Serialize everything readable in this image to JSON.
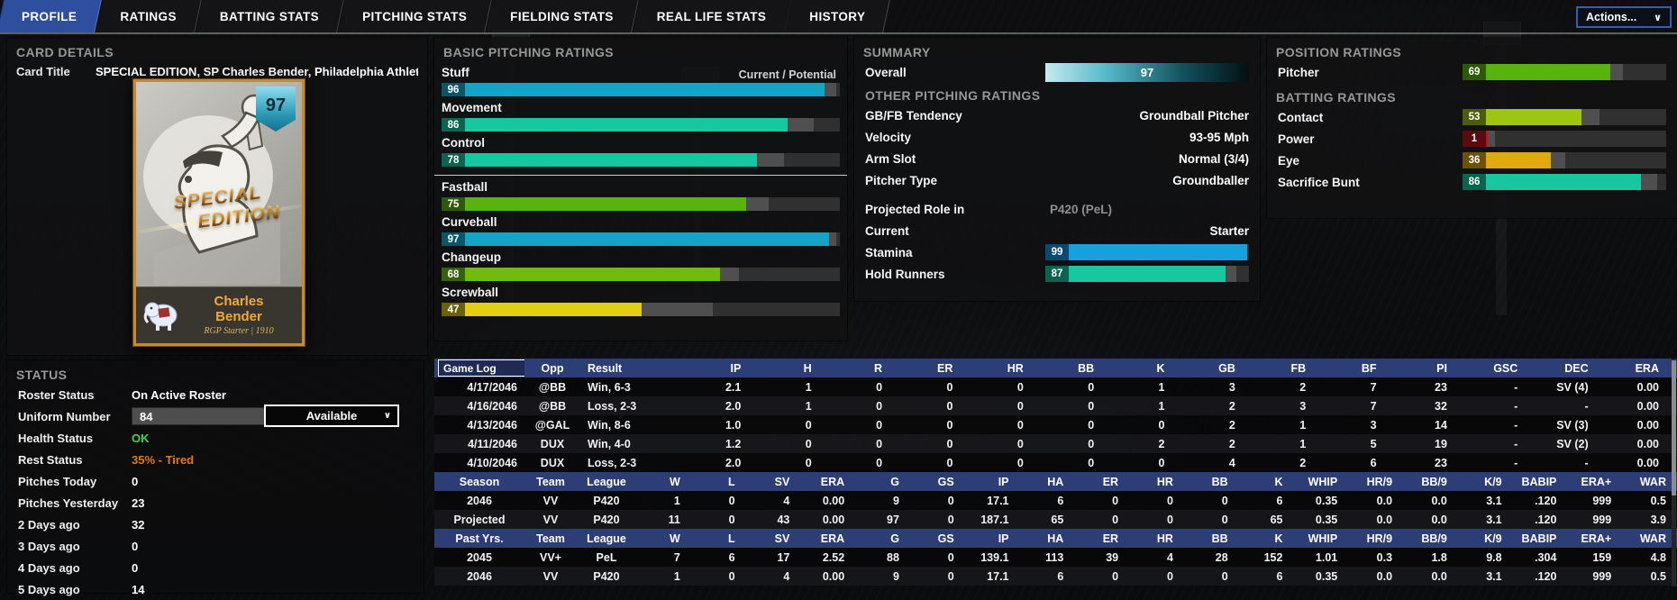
{
  "tabs": [
    {
      "label": "PROFILE",
      "active": true
    },
    {
      "label": "RATINGS",
      "active": false
    },
    {
      "label": "BATTING STATS",
      "active": false
    },
    {
      "label": "PITCHING STATS",
      "active": false
    },
    {
      "label": "FIELDING STATS",
      "active": false
    },
    {
      "label": "REAL LIFE STATS",
      "active": false
    },
    {
      "label": "HISTORY",
      "active": false
    }
  ],
  "actions_button": {
    "label": "Actions...",
    "chevron": "∨"
  },
  "card_details": {
    "heading": "CARD DETAILS",
    "title_label": "Card Title",
    "title_value": "SPECIAL EDITION, SP Charles Bender, Philadelphia Athleti",
    "card": {
      "rating": "97",
      "edition_top": "SPECIAL",
      "edition_bottom": "EDITION",
      "first_name": "Charles",
      "last_name": "Bender",
      "caption": "RGP Starter | 1910"
    }
  },
  "pitching": {
    "heading": "BASIC PITCHING RATINGS",
    "scale_label": "Current / Potential",
    "ratings": [
      {
        "label": "Stuff",
        "value": 96,
        "potential": 99,
        "bar": "#14a4c8",
        "chip": "#0b5568",
        "group": "core"
      },
      {
        "label": "Movement",
        "value": 86,
        "potential": 93,
        "bar": "#17c7a0",
        "chip": "#0b6350",
        "group": "core"
      },
      {
        "label": "Control",
        "value": 78,
        "potential": 85,
        "bar": "#17c7a0",
        "chip": "#0b6350",
        "group": "core"
      },
      {
        "label": "Fastball",
        "value": 75,
        "potential": 81,
        "bar": "#57b40e",
        "chip": "#2c5a06",
        "group": "pitch"
      },
      {
        "label": "Curveball",
        "value": 97,
        "potential": 99,
        "bar": "#14a4c8",
        "chip": "#0b5568",
        "group": "pitch"
      },
      {
        "label": "Changeup",
        "value": 68,
        "potential": 73,
        "bar": "#6fbc0f",
        "chip": "#37600a",
        "group": "pitch"
      },
      {
        "label": "Screwball",
        "value": 47,
        "potential": 66,
        "bar": "#e2cf13",
        "chip": "#6a620b",
        "group": "pitch"
      }
    ]
  },
  "summary": {
    "heading": "SUMMARY",
    "overall": {
      "label": "Overall",
      "value": "97"
    },
    "other_heading": "OTHER PITCHING RATINGS",
    "rows": [
      {
        "label": "GB/FB Tendency",
        "value": "Groundball Pitcher"
      },
      {
        "label": "Velocity",
        "value": "93-95 Mph"
      },
      {
        "label": "Arm Slot",
        "value": "Normal (3/4)"
      },
      {
        "label": "Pitcher Type",
        "value": "Groundballer"
      }
    ],
    "role": {
      "label": "Projected Role in",
      "value": "P420 (PeL)"
    },
    "current": {
      "label": "Current",
      "value": "Starter"
    },
    "bars": [
      {
        "label": "Stamina",
        "value": 99,
        "potential": 99,
        "bar": "#18a0dd",
        "chip": "#0b4a70"
      },
      {
        "label": "Hold Runners",
        "value": 87,
        "potential": 93,
        "bar": "#17c7a0",
        "chip": "#0b6350"
      }
    ]
  },
  "position": {
    "heading": "POSITION RATINGS",
    "bars": [
      {
        "label": "Pitcher",
        "value": 69,
        "potential": 76,
        "bar": "#57b40e",
        "chip": "#2c5a06"
      }
    ]
  },
  "batting": {
    "heading": "BATTING RATINGS",
    "bars": [
      {
        "label": "Contact",
        "value": 53,
        "potential": 63,
        "bar": "#9fc513",
        "chip": "#4c5c0b"
      },
      {
        "label": "Power",
        "value": 1,
        "potential": 5,
        "bar": "#c01218",
        "chip": "#5c0a0d"
      },
      {
        "label": "Eye",
        "value": 36,
        "potential": 44,
        "bar": "#e2a90f",
        "chip": "#6a520b"
      },
      {
        "label": "Sacrifice Bunt",
        "value": 86,
        "potential": 95,
        "bar": "#17c7a0",
        "chip": "#0b6350"
      }
    ]
  },
  "status": {
    "heading": "STATUS",
    "rows": [
      {
        "label": "Roster Status",
        "value": "On Active Roster"
      },
      {
        "label": "Uniform Number",
        "input": "84",
        "dropdown": "Available",
        "chevron": "∨"
      },
      {
        "label": "Health Status",
        "value": "OK",
        "color": "#3fd948"
      },
      {
        "label": "Rest Status",
        "value": "35% - Tired",
        "color": "#e07b17"
      },
      {
        "label": "Pitches Today",
        "value": "0"
      },
      {
        "label": "Pitches Yesterday",
        "value": "23"
      },
      {
        "label": "2 Days ago",
        "value": "32"
      },
      {
        "label": "3 Days ago",
        "value": "0"
      },
      {
        "label": "4 Days ago",
        "value": "0"
      },
      {
        "label": "5 Days ago",
        "value": "14"
      }
    ]
  },
  "tables": {
    "game_log": {
      "selector_chevron": "∨",
      "columns": [
        "Game Log",
        "Opp",
        "Result",
        "IP",
        "H",
        "R",
        "ER",
        "HR",
        "BB",
        "K",
        "GB",
        "FB",
        "BF",
        "PI",
        "GSC",
        "DEC",
        "ERA"
      ],
      "rows": [
        [
          "4/17/2046",
          "@BB",
          "Win, 6-3",
          "2.1",
          "1",
          "0",
          "0",
          "0",
          "0",
          "1",
          "3",
          "2",
          "7",
          "23",
          "-",
          "SV (4)",
          "0.00"
        ],
        [
          "4/16/2046",
          "@BB",
          "Loss, 2-3",
          "2.0",
          "1",
          "0",
          "0",
          "0",
          "0",
          "1",
          "2",
          "3",
          "7",
          "32",
          "-",
          "-",
          "0.00"
        ],
        [
          "4/13/2046",
          "@GAL",
          "Win, 8-6",
          "1.0",
          "0",
          "0",
          "0",
          "0",
          "0",
          "0",
          "2",
          "1",
          "3",
          "14",
          "-",
          "SV (3)",
          "0.00"
        ],
        [
          "4/11/2046",
          "DUX",
          "Win, 4-0",
          "1.2",
          "0",
          "0",
          "0",
          "0",
          "0",
          "2",
          "2",
          "1",
          "5",
          "19",
          "-",
          "SV (2)",
          "0.00"
        ],
        [
          "4/10/2046",
          "DUX",
          "Loss, 2-3",
          "2.0",
          "0",
          "0",
          "0",
          "0",
          "0",
          "0",
          "4",
          "2",
          "6",
          "23",
          "-",
          "-",
          "0.00"
        ]
      ]
    },
    "season": {
      "columns": [
        "Season",
        "Team",
        "League",
        "W",
        "L",
        "SV",
        "ERA",
        "G",
        "GS",
        "IP",
        "HA",
        "ER",
        "HR",
        "BB",
        "K",
        "WHIP",
        "HR/9",
        "BB/9",
        "K/9",
        "BABIP",
        "ERA+",
        "WAR"
      ],
      "rows": [
        [
          "2046",
          "VV",
          "P420",
          "1",
          "0",
          "4",
          "0.00",
          "9",
          "0",
          "17.1",
          "6",
          "0",
          "0",
          "0",
          "6",
          "0.35",
          "0.0",
          "0.0",
          "3.1",
          ".120",
          "999",
          "0.5"
        ],
        [
          "Projected",
          "VV",
          "P420",
          "11",
          "0",
          "43",
          "0.00",
          "97",
          "0",
          "187.1",
          "65",
          "0",
          "0",
          "0",
          "65",
          "0.35",
          "0.0",
          "0.0",
          "3.1",
          ".120",
          "999",
          "3.9"
        ]
      ]
    },
    "past_years": {
      "columns": [
        "Past Yrs.",
        "Team",
        "League",
        "W",
        "L",
        "SV",
        "ERA",
        "G",
        "GS",
        "IP",
        "HA",
        "ER",
        "HR",
        "BB",
        "K",
        "WHIP",
        "HR/9",
        "BB/9",
        "K/9",
        "BABIP",
        "ERA+",
        "WAR"
      ],
      "rows": [
        [
          "2045",
          "VV+",
          "PeL",
          "7",
          "6",
          "17",
          "2.52",
          "88",
          "0",
          "139.1",
          "113",
          "39",
          "4",
          "28",
          "152",
          "1.01",
          "0.3",
          "1.8",
          "9.8",
          ".304",
          "159",
          "4.8"
        ],
        [
          "2046",
          "VV",
          "P420",
          "1",
          "0",
          "4",
          "0.00",
          "9",
          "0",
          "17.1",
          "6",
          "0",
          "0",
          "0",
          "6",
          "0.35",
          "0.0",
          "0.0",
          "3.1",
          ".120",
          "999",
          "0.5"
        ]
      ]
    }
  }
}
